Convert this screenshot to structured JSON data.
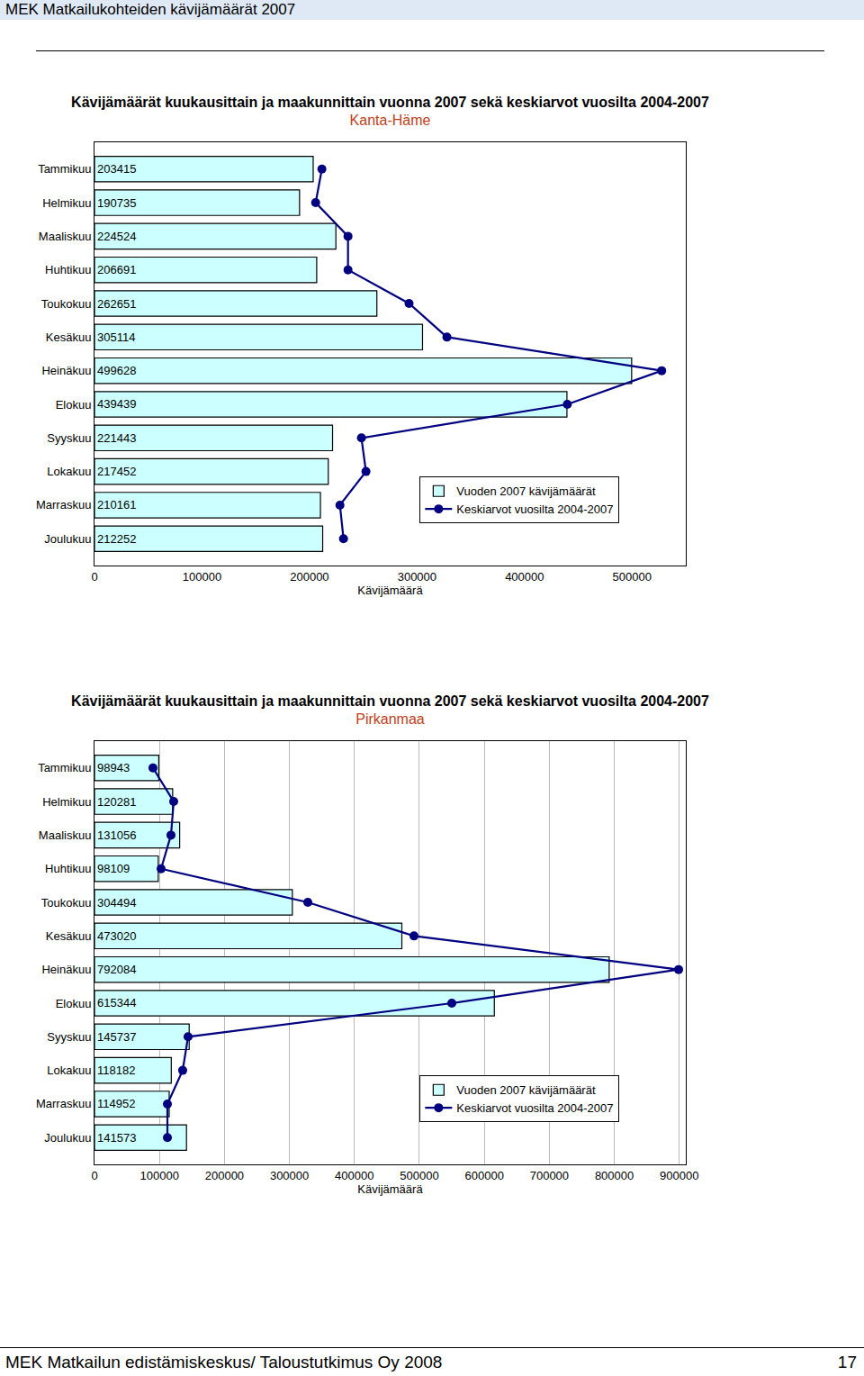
{
  "page": {
    "header": "MEK Matkailukohteiden kävijämäärät 2007",
    "footer": "MEK Matkailun edistämiskeskus/ Taloustutkimus Oy 2008",
    "page_number": 17
  },
  "chart_data": [
    {
      "type": "bar",
      "title": "Kävijämäärät kuukausittain ja maakunnittain vuonna 2007 sekä keskiarvot vuosilta 2004-2007",
      "subtitle": "Kanta-Häme",
      "x_label": "Kävijämäärä",
      "orientation": "horizontal",
      "categories": [
        "Tammikuu",
        "Helmikuu",
        "Maaliskuu",
        "Huhtikuu",
        "Toukokuu",
        "Kesäkuu",
        "Heinäkuu",
        "Elokuu",
        "Syyskuu",
        "Lokakuu",
        "Marraskuu",
        "Joulukuu"
      ],
      "series": [
        {
          "name": "Vuoden 2007 kävijämäärät",
          "type": "bar",
          "color": "#ccffff",
          "values": [
            203415,
            190735,
            224524,
            206691,
            262651,
            305114,
            499628,
            439439,
            221443,
            217452,
            210161,
            212252
          ]
        },
        {
          "name": "Keskiarvot vuosilta 2004-2007",
          "type": "line",
          "color": "#000080",
          "marker": "circle",
          "line_style": "solid",
          "values": [
            211500,
            205700,
            235800,
            235800,
            292600,
            327800,
            527600,
            439800,
            248300,
            252500,
            228300,
            231600
          ]
        }
      ],
      "xlim": [
        0,
        550000
      ],
      "xticks": [
        0,
        100000,
        200000,
        300000,
        400000,
        500000
      ],
      "grid": false,
      "legend": "lower right",
      "data_labels": true
    },
    {
      "type": "bar",
      "title": "Kävijämäärät kuukausittain ja maakunnittain vuonna 2007 sekä keskiarvot vuosilta 2004-2007",
      "subtitle": "Pirkanmaa",
      "x_label": "Kävijämäärä",
      "orientation": "horizontal",
      "categories": [
        "Tammikuu",
        "Helmikuu",
        "Maaliskuu",
        "Huhtikuu",
        "Toukokuu",
        "Kesäkuu",
        "Heinäkuu",
        "Elokuu",
        "Syyskuu",
        "Lokakuu",
        "Marraskuu",
        "Joulukuu"
      ],
      "series": [
        {
          "name": "Vuoden 2007 kävijämäärät",
          "type": "bar",
          "color": "#ccffff",
          "values": [
            98943,
            120281,
            131056,
            98109,
            304494,
            473020,
            792084,
            615344,
            145737,
            118182,
            114952,
            141573
          ]
        },
        {
          "name": "Keskiarvot vuosilta 2004-2007",
          "type": "line",
          "color": "#000080",
          "marker": "circle",
          "line_style": "solid",
          "values": [
            90000,
            121900,
            117700,
            102500,
            328300,
            491700,
            898900,
            549900,
            144000,
            135700,
            112200,
            112200
          ]
        }
      ],
      "xlim": [
        0,
        910000
      ],
      "xticks": [
        0,
        100000,
        200000,
        300000,
        400000,
        500000,
        600000,
        700000,
        800000,
        900000
      ],
      "grid": true,
      "legend": "lower right",
      "data_labels": true
    }
  ]
}
